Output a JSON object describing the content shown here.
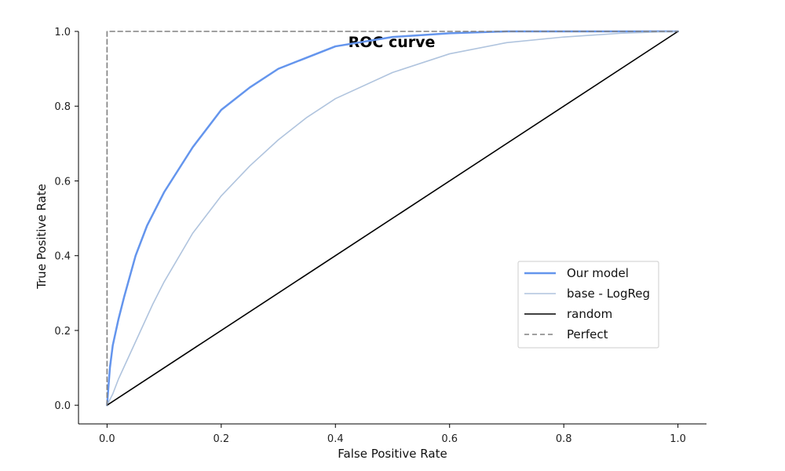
{
  "chart_data": {
    "type": "line",
    "title": "ROC curve",
    "xlabel": "False Positive Rate",
    "ylabel": "True Positive Rate",
    "xlim": [
      -0.05,
      1.05
    ],
    "ylim": [
      -0.05,
      1.0
    ],
    "x_ticks": [
      "0.0",
      "0.2",
      "0.4",
      "0.6",
      "0.8",
      "1.0"
    ],
    "y_ticks": [
      "0.0",
      "0.2",
      "0.4",
      "0.6",
      "0.8",
      "1.0"
    ],
    "grid": false,
    "legend_position": "right",
    "series": [
      {
        "name": "Our model",
        "color": "#6495ED",
        "style": "solid",
        "x": [
          0,
          0.005,
          0.01,
          0.02,
          0.03,
          0.05,
          0.07,
          0.1,
          0.15,
          0.2,
          0.25,
          0.3,
          0.4,
          0.5,
          0.6,
          0.7,
          0.8,
          1.0
        ],
        "y": [
          0,
          0.1,
          0.16,
          0.23,
          0.29,
          0.4,
          0.48,
          0.57,
          0.69,
          0.79,
          0.85,
          0.9,
          0.96,
          0.985,
          0.995,
          1.0,
          1.0,
          1.0
        ]
      },
      {
        "name": "base - LogReg",
        "color": "#B0C4DE",
        "style": "solid",
        "x": [
          0,
          0.01,
          0.02,
          0.05,
          0.08,
          0.1,
          0.15,
          0.2,
          0.25,
          0.3,
          0.35,
          0.4,
          0.5,
          0.6,
          0.7,
          0.8,
          0.9,
          1.0
        ],
        "y": [
          0,
          0.03,
          0.07,
          0.17,
          0.27,
          0.33,
          0.46,
          0.56,
          0.64,
          0.71,
          0.77,
          0.82,
          0.89,
          0.94,
          0.97,
          0.985,
          0.995,
          1.0
        ]
      },
      {
        "name": "random",
        "color": "#000000",
        "style": "solid",
        "x": [
          0,
          1
        ],
        "y": [
          0,
          1
        ]
      },
      {
        "name": "Perfect",
        "color": "#808080",
        "style": "dashed",
        "x": [
          0,
          0,
          1
        ],
        "y": [
          0,
          1,
          1
        ]
      }
    ]
  }
}
